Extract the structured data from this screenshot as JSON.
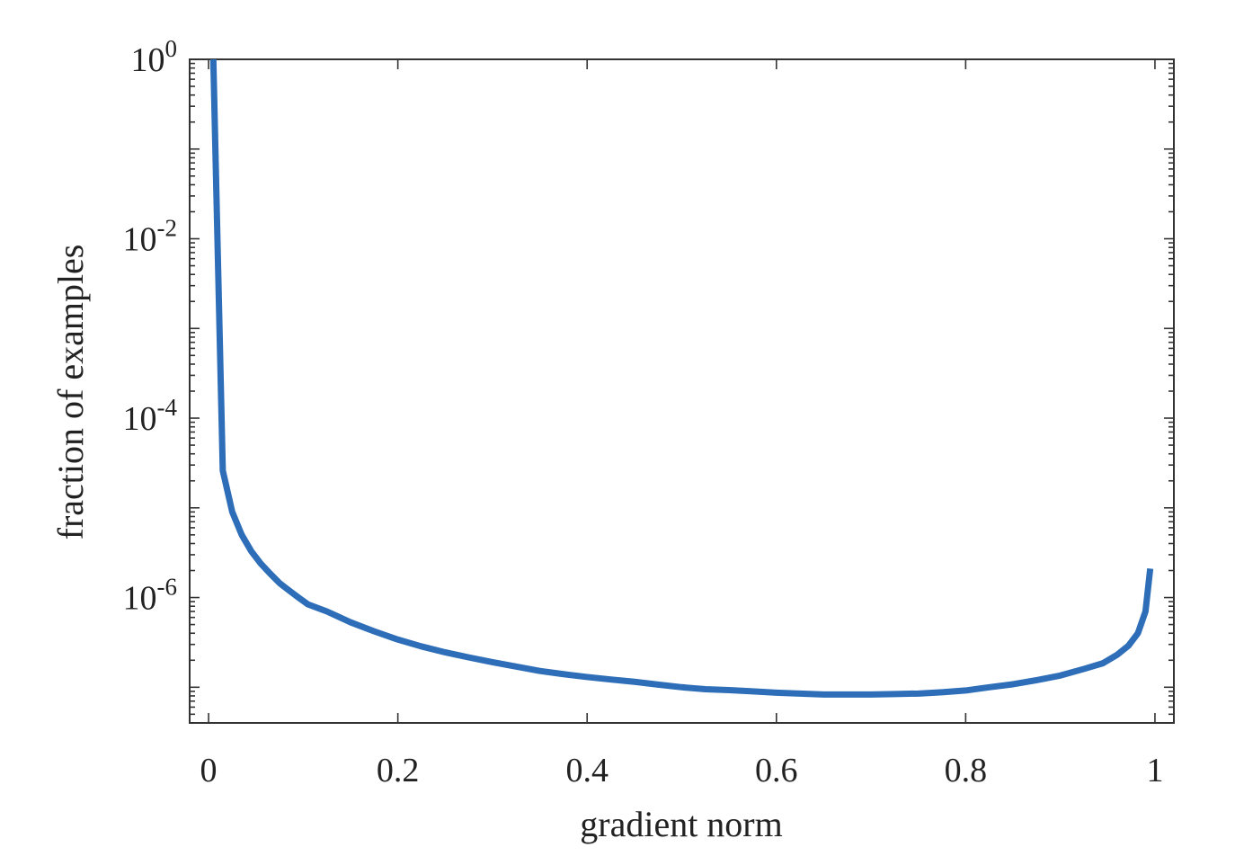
{
  "chart_data": {
    "type": "line",
    "title": "",
    "xlabel": "gradient norm",
    "ylabel": "fraction of examples",
    "xlim": [
      -0.02,
      1.02
    ],
    "ylim": [
      4e-08,
      1
    ],
    "yscale": "log",
    "grid": false,
    "legend": "none",
    "x_ticks": [
      {
        "value": 0,
        "label": "0"
      },
      {
        "value": 0.2,
        "label": "0.2"
      },
      {
        "value": 0.4,
        "label": "0.4"
      },
      {
        "value": 0.6,
        "label": "0.6"
      },
      {
        "value": 0.8,
        "label": "0.8"
      },
      {
        "value": 1,
        "label": "1"
      }
    ],
    "y_ticks": [
      {
        "value": 1,
        "base": "10",
        "exp": "0"
      },
      {
        "value": 0.01,
        "base": "10",
        "exp": "-2"
      },
      {
        "value": 0.0001,
        "base": "10",
        "exp": "-4"
      },
      {
        "value": 1e-06,
        "base": "10",
        "exp": "-6"
      }
    ],
    "series": [
      {
        "color": "#2E6EB8",
        "x": [
          0.005,
          0.015,
          0.025,
          0.035,
          0.045,
          0.055,
          0.065,
          0.075,
          0.085,
          0.095,
          0.105,
          0.125,
          0.15,
          0.175,
          0.2,
          0.225,
          0.25,
          0.275,
          0.3,
          0.325,
          0.35,
          0.375,
          0.4,
          0.425,
          0.45,
          0.475,
          0.5,
          0.525,
          0.55,
          0.575,
          0.6,
          0.625,
          0.65,
          0.675,
          0.7,
          0.725,
          0.75,
          0.775,
          0.8,
          0.825,
          0.85,
          0.875,
          0.9,
          0.925,
          0.945,
          0.96,
          0.972,
          0.982,
          0.99,
          0.995
        ],
        "y": [
          1,
          2.6e-05,
          9e-06,
          5e-06,
          3.3e-06,
          2.4e-06,
          1.85e-06,
          1.45e-06,
          1.2e-06,
          1e-06,
          8.4e-07,
          7e-07,
          5.3e-07,
          4.2e-07,
          3.4e-07,
          2.85e-07,
          2.45e-07,
          2.15e-07,
          1.9e-07,
          1.7e-07,
          1.52e-07,
          1.4e-07,
          1.3e-07,
          1.22e-07,
          1.15e-07,
          1.07e-07,
          1e-07,
          9.5e-08,
          9.3e-08,
          9e-08,
          8.7e-08,
          8.5e-08,
          8.3e-08,
          8.3e-08,
          8.3e-08,
          8.4e-08,
          8.5e-08,
          8.8e-08,
          9.2e-08,
          1e-07,
          1.08e-07,
          1.2e-07,
          1.35e-07,
          1.6e-07,
          1.85e-07,
          2.3e-07,
          2.9e-07,
          4e-07,
          7e-07,
          2.1e-06
        ]
      }
    ]
  }
}
